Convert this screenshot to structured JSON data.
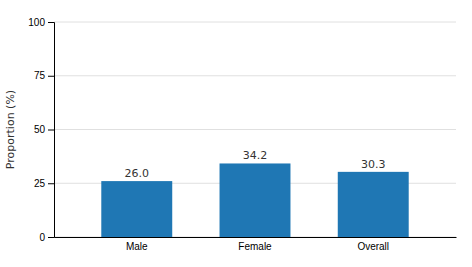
{
  "chart_data": {
    "type": "bar",
    "categories": [
      "Male",
      "Female",
      "Overall"
    ],
    "values": [
      26.0,
      34.2,
      30.3
    ],
    "value_labels": [
      "26.0",
      "34.2",
      "30.3"
    ],
    "data_labels": true,
    "ylabel": "Proportion (%)",
    "ylim": [
      0,
      100
    ],
    "yticks": [
      0,
      25,
      50,
      75,
      100
    ],
    "grid": true
  }
}
